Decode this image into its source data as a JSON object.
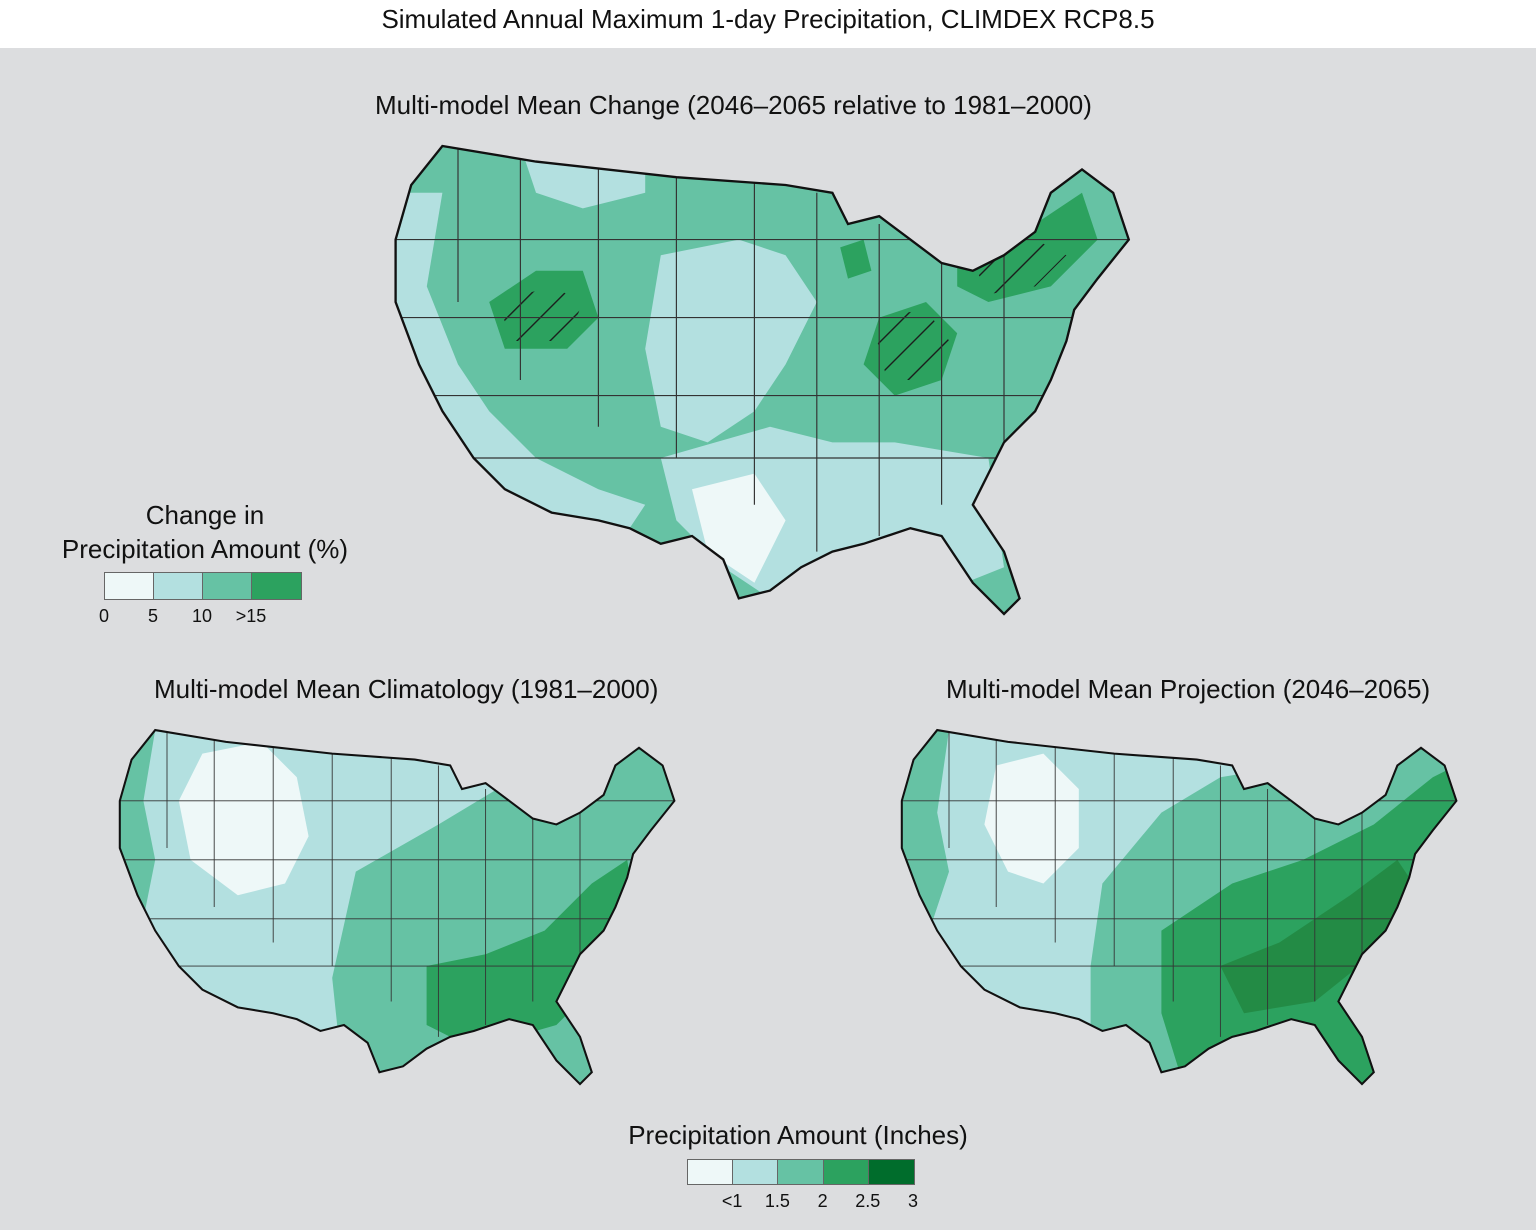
{
  "figure_title": "Simulated Annual Maximum 1-day Precipitation, CLIMDEX RCP8.5",
  "maps": {
    "change": {
      "title": "Multi-model Mean Change (2046–2065 relative to 1981–2000)",
      "legend": {
        "title_line1": "Change in",
        "title_line2": "Precipitation Amount (%)",
        "colors": [
          "#eef8f8",
          "#b3e0e0",
          "#66c2a4",
          "#2ca25f"
        ],
        "ticks": [
          "0",
          "5",
          "10",
          ">15"
        ]
      }
    },
    "climatology": {
      "title": "Multi-model Mean Climatology (1981–2000)"
    },
    "projection": {
      "title": "Multi-model Mean Projection (2046–2065)"
    }
  },
  "shared_legend": {
    "title": "Precipitation Amount (Inches)",
    "colors": [
      "#eef8f8",
      "#b3e0e0",
      "#66c2a4",
      "#2ca25f",
      "#006d2c"
    ],
    "ticks": [
      "<1",
      "1.5",
      "2",
      "2.5",
      "3"
    ]
  }
}
